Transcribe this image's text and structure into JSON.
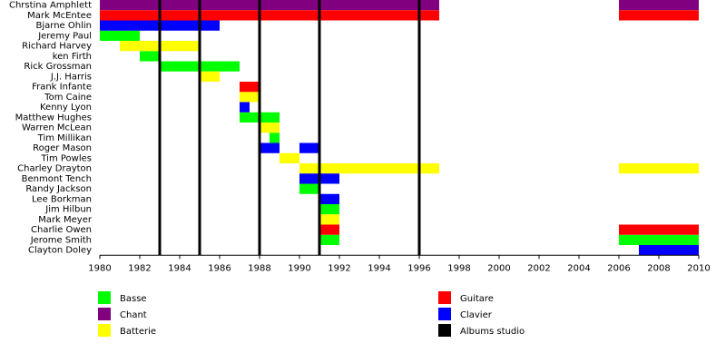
{
  "chart_data": {
    "type": "timeline",
    "categories": [
      "Chrstina Amphlett",
      "Mark McEntee",
      "Bjarne Ohlin",
      "Jeremy Paul",
      "Richard Harvey",
      "ken Firth",
      "Rick Grossman",
      "J.J. Harris",
      "Frank Infante",
      "Tom Caine",
      "Kenny Lyon",
      "Matthew Hughes",
      "Warren McLean",
      "Tim Millikan",
      "Roger Mason",
      "Tim Powles",
      "Charley Drayton",
      "Benmont Tench",
      "Randy Jackson",
      "Lee Borkman",
      "Jim Hilbun",
      "Mark Meyer",
      "Charlie Owen",
      "Jerome Smith",
      "Clayton Doley"
    ],
    "series": [
      {
        "name": "Basse",
        "color": "#00ff00",
        "segments": [
          {
            "member": "Jeremy Paul",
            "start": 1980,
            "end": 1982
          },
          {
            "member": "ken Firth",
            "start": 1982,
            "end": 1983
          },
          {
            "member": "Rick Grossman",
            "start": 1983,
            "end": 1987
          },
          {
            "member": "Matthew Hughes",
            "start": 1987,
            "end": 1989
          },
          {
            "member": "Tim Millikan",
            "start": 1988.5,
            "end": 1989
          },
          {
            "member": "Randy Jackson",
            "start": 1990,
            "end": 1991
          },
          {
            "member": "Jim Hilbun",
            "start": 1991,
            "end": 1992
          },
          {
            "member": "Jerome Smith",
            "start": 1991,
            "end": 1992
          },
          {
            "member": "Jerome Smith",
            "start": 2006,
            "end": 2010
          }
        ]
      },
      {
        "name": "Chant",
        "color": "#800080",
        "segments": [
          {
            "member": "Chrstina Amphlett",
            "start": 1980,
            "end": 1997
          },
          {
            "member": "Chrstina Amphlett",
            "start": 2006,
            "end": 2010
          }
        ]
      },
      {
        "name": "Batterie",
        "color": "#ffff00",
        "segments": [
          {
            "member": "Richard Harvey",
            "start": 1981,
            "end": 1985
          },
          {
            "member": "J.J. Harris",
            "start": 1985,
            "end": 1986
          },
          {
            "member": "Tom Caine",
            "start": 1987,
            "end": 1988
          },
          {
            "member": "Warren McLean",
            "start": 1988,
            "end": 1989
          },
          {
            "member": "Tim Powles",
            "start": 1989,
            "end": 1990
          },
          {
            "member": "Charley Drayton",
            "start": 1990,
            "end": 1997
          },
          {
            "member": "Charley Drayton",
            "start": 2006,
            "end": 2010
          },
          {
            "member": "Mark Meyer",
            "start": 1991,
            "end": 1992
          }
        ]
      },
      {
        "name": "Guitare",
        "color": "#ff0000",
        "segments": [
          {
            "member": "Mark McEntee",
            "start": 1980,
            "end": 1997
          },
          {
            "member": "Mark McEntee",
            "start": 2006,
            "end": 2010
          },
          {
            "member": "Frank Infante",
            "start": 1987,
            "end": 1988
          },
          {
            "member": "Charlie Owen",
            "start": 1991,
            "end": 1992
          },
          {
            "member": "Charlie Owen",
            "start": 2006,
            "end": 2010
          }
        ]
      },
      {
        "name": "Clavier",
        "color": "#0000ff",
        "segments": [
          {
            "member": "Bjarne Ohlin",
            "start": 1980,
            "end": 1986
          },
          {
            "member": "Kenny Lyon",
            "start": 1987,
            "end": 1987.5
          },
          {
            "member": "Roger Mason",
            "start": 1988,
            "end": 1989
          },
          {
            "member": "Roger Mason",
            "start": 1990,
            "end": 1991
          },
          {
            "member": "Benmont Tench",
            "start": 1990,
            "end": 1992
          },
          {
            "member": "Lee Borkman",
            "start": 1991,
            "end": 1992
          },
          {
            "member": "Clayton Doley",
            "start": 2007,
            "end": 2010
          }
        ]
      },
      {
        "name": "Albums studio",
        "color": "#000000",
        "x": [
          1983,
          1985,
          1988,
          1991,
          1996
        ]
      }
    ],
    "xlim": [
      1980,
      2010
    ],
    "xticks": [
      1980,
      1982,
      1984,
      1986,
      1988,
      1990,
      1992,
      1994,
      1996,
      1998,
      2000,
      2002,
      2004,
      2006,
      2008,
      2010
    ]
  }
}
